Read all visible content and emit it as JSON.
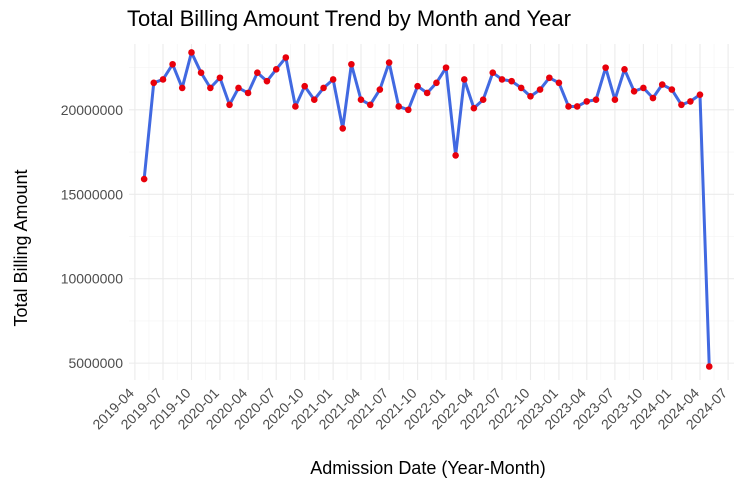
{
  "chart_data": {
    "type": "line",
    "title": "Total Billing Amount Trend by Month and Year",
    "xlabel": "Admission Date (Year-Month)",
    "ylabel": "Total Billing Amount",
    "x_tick_labels": [
      "2019-04",
      "2019-07",
      "2019-10",
      "2020-01",
      "2020-04",
      "2020-07",
      "2020-10",
      "2021-01",
      "2021-04",
      "2021-07",
      "2021-10",
      "2022-01",
      "2022-04",
      "2022-07",
      "2022-10",
      "2023-01",
      "2023-04",
      "2023-07",
      "2023-10",
      "2024-01",
      "2024-04",
      "2024-07"
    ],
    "y_tick_values": [
      5000000,
      10000000,
      15000000,
      20000000
    ],
    "y_tick_labels": [
      "5000000",
      "10000000",
      "15000000",
      "20000000"
    ],
    "xlim": [
      "2019-03-13",
      "2024-07-20"
    ],
    "ylim": [
      4000000,
      23900000
    ],
    "grid": true,
    "line_color": "#4169E1",
    "point_color": "#E8000B",
    "series": [
      {
        "x": [
          "2019-05",
          "2019-06",
          "2019-07",
          "2019-08",
          "2019-09",
          "2019-10",
          "2019-11",
          "2019-12",
          "2020-01",
          "2020-02",
          "2020-03",
          "2020-04",
          "2020-05",
          "2020-06",
          "2020-07",
          "2020-08",
          "2020-09",
          "2020-10",
          "2020-11",
          "2020-12",
          "2021-01",
          "2021-02",
          "2021-03",
          "2021-04",
          "2021-05",
          "2021-06",
          "2021-07",
          "2021-08",
          "2021-09",
          "2021-10",
          "2021-11",
          "2021-12",
          "2022-01",
          "2022-02",
          "2022-03",
          "2022-04",
          "2022-05",
          "2022-06",
          "2022-07",
          "2022-08",
          "2022-09",
          "2022-10",
          "2022-11",
          "2022-12",
          "2023-01",
          "2023-02",
          "2023-03",
          "2023-04",
          "2023-05",
          "2023-06",
          "2023-07",
          "2023-08",
          "2023-09",
          "2023-10",
          "2023-11",
          "2023-12",
          "2024-01",
          "2024-02",
          "2024-03",
          "2024-04",
          "2024-05"
        ],
        "values": [
          15900000,
          21600000,
          21800000,
          22700000,
          21300000,
          23400000,
          22200000,
          21300000,
          21900000,
          20300000,
          21300000,
          21000000,
          22200000,
          21700000,
          22400000,
          23100000,
          20200000,
          21400000,
          20600000,
          21300000,
          21800000,
          18900000,
          22700000,
          20600000,
          20300000,
          21200000,
          22800000,
          20200000,
          20000000,
          21400000,
          21000000,
          21600000,
          22500000,
          17300000,
          21800000,
          20100000,
          20600000,
          22200000,
          21800000,
          21700000,
          21300000,
          20800000,
          21200000,
          21900000,
          21600000,
          20200000,
          20200000,
          20500000,
          20600000,
          22500000,
          20600000,
          22400000,
          21100000,
          21300000,
          20700000,
          21500000,
          21200000,
          20300000,
          20500000,
          20900000,
          4800000
        ]
      }
    ]
  }
}
